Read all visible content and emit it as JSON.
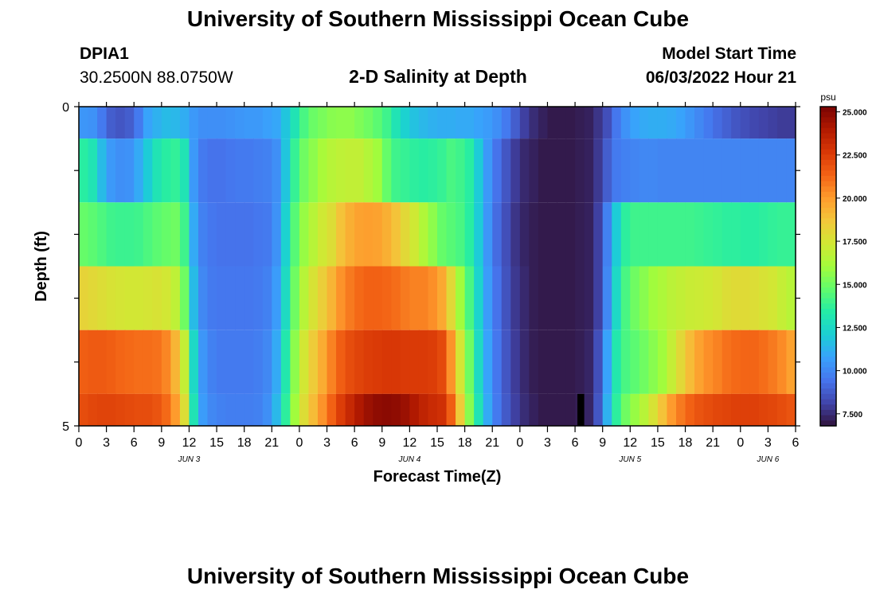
{
  "header": {
    "title": "University of Southern Mississippi Ocean Cube",
    "station": "DPIA1",
    "coordinates": "30.2500N  88.0750W",
    "subtitle": "2-D Salinity at Depth",
    "model_start_label": "Model Start Time",
    "model_start_value": "06/03/2022 Hour 21"
  },
  "footer": {
    "title": "University of Southern Mississippi Ocean Cube"
  },
  "colors": {
    "scale": [
      "#30123b",
      "#4145ab",
      "#4675ed",
      "#39a2fc",
      "#1bcfd4",
      "#24eca6",
      "#61fc6c",
      "#a4fc3b",
      "#d1e834",
      "#f3c63a",
      "#fe9b2d",
      "#f36315",
      "#d93806",
      "#b11901",
      "#7a0403"
    ]
  },
  "chart_data": {
    "type": "heatmap",
    "title": "2-D Salinity at Depth",
    "xlabel": "Forecast Time(Z)",
    "ylabel": "Depth (ft)",
    "x_tick_labels": [
      "0",
      "3",
      "6",
      "9",
      "12",
      "15",
      "18",
      "21",
      "0",
      "3",
      "6",
      "9",
      "12",
      "15",
      "18",
      "21",
      "0",
      "3",
      "6",
      "9",
      "12",
      "15",
      "18",
      "21",
      "0",
      "3",
      "6"
    ],
    "date_labels": [
      {
        "label": "JUN 3",
        "hour": 12
      },
      {
        "label": "JUN 4",
        "hour": 36
      },
      {
        "label": "JUN 5",
        "hour": 60
      },
      {
        "label": "JUN 6",
        "hour": 75
      }
    ],
    "x_range_hours": [
      0,
      78
    ],
    "y_range": [
      0,
      5
    ],
    "y_tick_labels": [
      "0",
      "5"
    ],
    "depth_bins": [
      {
        "from": 0.0,
        "to": 0.5
      },
      {
        "from": 0.5,
        "to": 1.5
      },
      {
        "from": 1.5,
        "to": 2.5
      },
      {
        "from": 2.5,
        "to": 3.5
      },
      {
        "from": 3.5,
        "to": 4.5
      },
      {
        "from": 4.5,
        "to": 5.0
      }
    ],
    "colorbar": {
      "unit": "psu",
      "min": 6.8,
      "max": 25.3,
      "tick_labels": [
        "7.500",
        "10.000",
        "12.500",
        "15.000",
        "17.500",
        "20.000",
        "22.500",
        "25.000"
      ],
      "tick_values": [
        7.5,
        10,
        12.5,
        15,
        17.5,
        20,
        22.5,
        25
      ]
    },
    "series": [
      {
        "name": "0-0.5 ft",
        "x": [
          0,
          1,
          2,
          3,
          4,
          5,
          6,
          7,
          8,
          9,
          10,
          11,
          12,
          13,
          14,
          15,
          16,
          17,
          18,
          19,
          20,
          21,
          22,
          23,
          24,
          25,
          26,
          27,
          28,
          29,
          30,
          31,
          32,
          33,
          34,
          35,
          36,
          37,
          38,
          39,
          40,
          41,
          42,
          43,
          44,
          45,
          46,
          47,
          48,
          49,
          50,
          51,
          52,
          53,
          54,
          55,
          56,
          57,
          58,
          59,
          60,
          61,
          62,
          63,
          64,
          65,
          66,
          67,
          68,
          69,
          70,
          71,
          72,
          73,
          74,
          75,
          76,
          77
        ],
        "values": [
          10.4,
          10.3,
          9.6,
          8.8,
          8.6,
          8.8,
          9.6,
          10.8,
          11.2,
          11.5,
          11.4,
          11.1,
          10.5,
          10.2,
          10.2,
          10.2,
          10.3,
          10.4,
          10.5,
          10.5,
          10.7,
          10.9,
          11.8,
          13.0,
          14.2,
          14.9,
          15.2,
          15.5,
          15.6,
          15.6,
          15.3,
          15.0,
          14.6,
          14.0,
          13.0,
          12.2,
          11.7,
          11.4,
          11.2,
          11.1,
          11.1,
          11.0,
          11.0,
          10.8,
          10.6,
          10.2,
          9.6,
          8.8,
          8.0,
          7.5,
          7.2,
          7.0,
          7.0,
          7.0,
          7.1,
          7.2,
          7.7,
          8.4,
          9.5,
          10.3,
          10.8,
          11.0,
          11.1,
          11.1,
          11.0,
          10.8,
          10.4,
          10.0,
          9.6,
          9.2,
          8.9,
          8.6,
          8.4,
          8.2,
          8.1,
          8.0,
          7.9,
          7.9
        ]
      },
      {
        "name": "0.5-1.5 ft",
        "x": [
          0,
          1,
          2,
          3,
          4,
          5,
          6,
          7,
          8,
          9,
          10,
          11,
          12,
          13,
          14,
          15,
          16,
          17,
          18,
          19,
          20,
          21,
          22,
          23,
          24,
          25,
          26,
          27,
          28,
          29,
          30,
          31,
          32,
          33,
          34,
          35,
          36,
          37,
          38,
          39,
          40,
          41,
          42,
          43,
          44,
          45,
          46,
          47,
          48,
          49,
          50,
          51,
          52,
          53,
          54,
          55,
          56,
          57,
          58,
          59,
          60,
          61,
          62,
          63,
          64,
          65,
          66,
          67,
          68,
          69,
          70,
          71,
          72,
          73,
          74,
          75,
          76,
          77
        ],
        "values": [
          13.5,
          13.0,
          11.5,
          10.5,
          10.2,
          10.3,
          11.0,
          12.0,
          13.0,
          13.5,
          13.7,
          13.0,
          10.5,
          9.6,
          9.4,
          9.4,
          9.5,
          9.6,
          9.6,
          9.7,
          9.8,
          10.2,
          11.8,
          13.8,
          15.0,
          15.6,
          16.2,
          16.6,
          16.8,
          16.9,
          16.9,
          16.5,
          16.0,
          14.8,
          14.0,
          13.8,
          13.6,
          13.5,
          13.6,
          13.8,
          14.2,
          14.0,
          13.5,
          12.0,
          10.5,
          9.4,
          8.6,
          7.9,
          7.4,
          7.2,
          7.0,
          7.0,
          7.0,
          7.0,
          7.1,
          7.2,
          7.8,
          8.8,
          9.6,
          9.8,
          9.9,
          10.0,
          10.0,
          9.9,
          9.9,
          9.9,
          9.9,
          9.9,
          9.9,
          9.9,
          9.9,
          9.9,
          9.9,
          9.9,
          9.9,
          9.9,
          9.9,
          9.9
        ]
      },
      {
        "name": "1.5-2.5 ft",
        "x": [
          0,
          1,
          2,
          3,
          4,
          5,
          6,
          7,
          8,
          9,
          10,
          11,
          12,
          13,
          14,
          15,
          16,
          17,
          18,
          19,
          20,
          21,
          22,
          23,
          24,
          25,
          26,
          27,
          28,
          29,
          30,
          31,
          32,
          33,
          34,
          35,
          36,
          37,
          38,
          39,
          40,
          41,
          42,
          43,
          44,
          45,
          46,
          47,
          48,
          49,
          50,
          51,
          52,
          53,
          54,
          55,
          56,
          57,
          58,
          59,
          60,
          61,
          62,
          63,
          64,
          65,
          66,
          67,
          68,
          69,
          70,
          71,
          72,
          73,
          74,
          75,
          76,
          77
        ],
        "values": [
          14.8,
          14.6,
          14.3,
          14.0,
          13.9,
          13.9,
          14.0,
          14.3,
          14.6,
          14.8,
          15.0,
          14.0,
          11.0,
          9.8,
          9.5,
          9.4,
          9.4,
          9.4,
          9.4,
          9.5,
          9.6,
          10.3,
          12.2,
          14.5,
          15.8,
          16.6,
          17.3,
          17.8,
          18.8,
          19.4,
          19.8,
          19.9,
          19.8,
          19.4,
          18.8,
          18.0,
          17.3,
          16.4,
          15.6,
          14.8,
          14.5,
          14.2,
          13.5,
          12.0,
          10.4,
          9.2,
          8.4,
          7.7,
          7.3,
          7.1,
          7.0,
          7.0,
          7.0,
          7.0,
          7.1,
          7.2,
          8.0,
          9.8,
          12.0,
          13.6,
          14.0,
          14.0,
          14.0,
          14.0,
          14.0,
          14.0,
          14.0,
          13.9,
          13.8,
          13.7,
          13.6,
          13.6,
          13.5,
          13.5,
          13.6,
          13.7,
          13.8,
          13.8
        ]
      },
      {
        "name": "2.5-3.5 ft",
        "x": [
          0,
          1,
          2,
          3,
          4,
          5,
          6,
          7,
          8,
          9,
          10,
          11,
          12,
          13,
          14,
          15,
          16,
          17,
          18,
          19,
          20,
          21,
          22,
          23,
          24,
          25,
          26,
          27,
          28,
          29,
          30,
          31,
          32,
          33,
          34,
          35,
          36,
          37,
          38,
          39,
          40,
          41,
          42,
          43,
          44,
          45,
          46,
          47,
          48,
          49,
          50,
          51,
          52,
          53,
          54,
          55,
          56,
          57,
          58,
          59,
          60,
          61,
          62,
          63,
          64,
          65,
          66,
          67,
          68,
          69,
          70,
          71,
          72,
          73,
          74,
          75,
          76,
          77
        ],
        "values": [
          18.2,
          18.0,
          17.8,
          17.6,
          17.5,
          17.4,
          17.4,
          17.5,
          17.6,
          17.4,
          16.8,
          15.0,
          11.5,
          10.0,
          9.6,
          9.5,
          9.5,
          9.5,
          9.5,
          9.6,
          9.8,
          10.6,
          12.6,
          15.0,
          16.6,
          17.6,
          18.4,
          19.2,
          20.2,
          20.8,
          21.2,
          21.4,
          21.4,
          21.3,
          21.1,
          20.8,
          20.6,
          20.6,
          20.3,
          19.6,
          18.0,
          16.0,
          14.2,
          12.3,
          10.6,
          9.4,
          8.5,
          7.8,
          7.4,
          7.1,
          7.0,
          7.0,
          7.0,
          7.0,
          7.1,
          7.2,
          8.0,
          10.0,
          12.5,
          14.2,
          15.0,
          15.5,
          16.0,
          16.3,
          16.7,
          16.9,
          17.1,
          17.2,
          17.3,
          17.5,
          17.8,
          17.9,
          17.9,
          17.8,
          17.6,
          17.4,
          17.0,
          16.6
        ]
      },
      {
        "name": "3.5-4.5 ft",
        "x": [
          0,
          1,
          2,
          3,
          4,
          5,
          6,
          7,
          8,
          9,
          10,
          11,
          12,
          13,
          14,
          15,
          16,
          17,
          18,
          19,
          20,
          21,
          22,
          23,
          24,
          25,
          26,
          27,
          28,
          29,
          30,
          31,
          32,
          33,
          34,
          35,
          36,
          37,
          38,
          39,
          40,
          41,
          42,
          43,
          44,
          45,
          46,
          47,
          48,
          49,
          50,
          51,
          52,
          53,
          54,
          55,
          56,
          57,
          58,
          59,
          60,
          61,
          62,
          63,
          64,
          65,
          66,
          67,
          68,
          69,
          70,
          71,
          72,
          73,
          74,
          75,
          76,
          77
        ],
        "values": [
          21.5,
          21.6,
          21.6,
          21.5,
          21.3,
          21.2,
          21.1,
          21.1,
          21.0,
          20.5,
          19.2,
          17.0,
          12.5,
          10.4,
          9.8,
          9.6,
          9.6,
          9.6,
          9.6,
          9.7,
          10.0,
          11.0,
          13.2,
          15.6,
          17.4,
          18.5,
          19.5,
          20.6,
          21.5,
          22.0,
          22.3,
          22.5,
          22.6,
          22.7,
          22.7,
          22.6,
          22.6,
          22.6,
          22.5,
          22.1,
          20.2,
          17.5,
          15.0,
          12.6,
          10.8,
          9.5,
          8.6,
          7.9,
          7.4,
          7.1,
          7.0,
          7.0,
          7.0,
          7.0,
          7.1,
          7.3,
          8.4,
          10.8,
          13.2,
          14.2,
          14.6,
          15.0,
          15.5,
          16.0,
          17.0,
          18.0,
          19.0,
          19.8,
          20.3,
          20.6,
          21.0,
          21.2,
          21.3,
          21.3,
          21.1,
          20.8,
          20.4,
          19.8
        ]
      },
      {
        "name": "4.5-5 ft",
        "x": [
          0,
          1,
          2,
          3,
          4,
          5,
          6,
          7,
          8,
          9,
          10,
          11,
          12,
          13,
          14,
          15,
          16,
          17,
          18,
          19,
          20,
          21,
          22,
          23,
          24,
          25,
          26,
          27,
          28,
          29,
          30,
          31,
          32,
          33,
          34,
          35,
          36,
          37,
          38,
          39,
          40,
          41,
          42,
          43,
          44,
          45,
          46,
          47,
          48,
          49,
          50,
          51,
          52,
          53,
          54,
          55,
          56,
          57,
          58,
          59,
          60,
          61,
          62,
          63,
          64,
          65,
          66,
          67,
          68,
          69,
          70,
          71,
          72,
          73,
          74,
          75,
          76,
          77
        ],
        "values": [
          22.0,
          22.2,
          22.3,
          22.3,
          22.2,
          22.1,
          22.0,
          22.0,
          21.8,
          21.2,
          20.0,
          17.8,
          13.0,
          10.6,
          10.0,
          9.8,
          9.7,
          9.7,
          9.7,
          9.8,
          10.2,
          11.4,
          13.6,
          16.0,
          17.8,
          19.0,
          20.2,
          21.4,
          22.5,
          23.3,
          24.0,
          24.5,
          24.8,
          24.9,
          24.8,
          24.5,
          24.0,
          23.5,
          23.2,
          23.0,
          21.5,
          18.5,
          15.5,
          13.0,
          11.0,
          9.6,
          8.7,
          8.0,
          7.5,
          7.2,
          7.0,
          7.0,
          7.0,
          7.0,
          7.1,
          7.3,
          8.6,
          11.2,
          13.6,
          15.0,
          15.8,
          16.6,
          17.6,
          18.8,
          20.0,
          20.8,
          21.4,
          21.8,
          22.0,
          22.2,
          22.3,
          22.4,
          22.4,
          22.4,
          22.3,
          22.2,
          22.0,
          21.8
        ]
      }
    ],
    "masked": {
      "depth_bin": 5,
      "hours": [
        54,
        55
      ]
    }
  }
}
